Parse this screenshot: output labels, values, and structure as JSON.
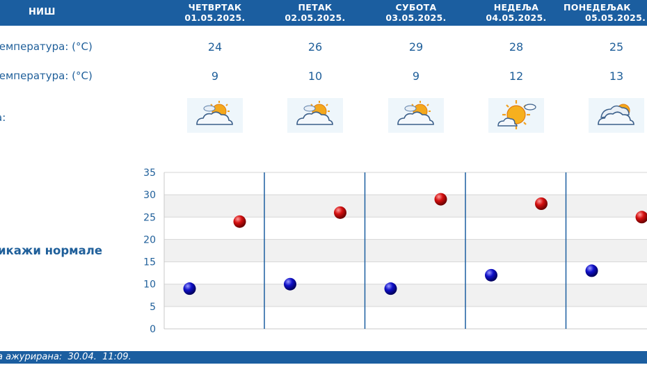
{
  "header": {
    "city": "НИШ",
    "days": [
      {
        "name": "ЧЕТВРТАК",
        "date": "01.05.2025."
      },
      {
        "name": "ПЕТАК",
        "date": "02.05.2025."
      },
      {
        "name": "СУБОТА",
        "date": "03.05.2025."
      },
      {
        "name": "НЕДЕЉА",
        "date": "04.05.2025."
      },
      {
        "name": "ПОНЕДЕЉАК",
        "date": "05.05.2025."
      }
    ]
  },
  "rows": {
    "max_label": "температура: (°C)",
    "min_label": "температура: (°C)",
    "icon_label": "а:",
    "max_values": [
      "24",
      "26",
      "29",
      "28",
      "25"
    ],
    "min_values": [
      "9",
      "10",
      "9",
      "12",
      "13"
    ],
    "icons": [
      "sun-behind-cloud-icon",
      "sun-behind-cloud-icon",
      "sun-behind-cloud-icon",
      "sun-small-cloud-icon",
      "cloud-with-sun-icon"
    ]
  },
  "normals_label": "икажи нормале",
  "footer": {
    "updated_text": "а ажурирана:  30.04.  11:09."
  },
  "colors": {
    "header_bg": "#1b5ea0",
    "text_blue": "#1f5f9a",
    "max_marker": "#d41010",
    "min_marker": "#1010c8"
  },
  "chart_data": {
    "type": "scatter",
    "categories": [
      "01.05.2025.",
      "02.05.2025.",
      "03.05.2025.",
      "04.05.2025.",
      "05.05.2025."
    ],
    "series": [
      {
        "values": [
          24,
          26,
          29,
          28,
          25
        ]
      },
      {
        "values": [
          9,
          10,
          9,
          12,
          13
        ]
      }
    ],
    "ylim": [
      0,
      35
    ],
    "yticks": [
      "0",
      "5",
      "10",
      "15",
      "20",
      "25",
      "30",
      "35"
    ],
    "grid": true
  }
}
